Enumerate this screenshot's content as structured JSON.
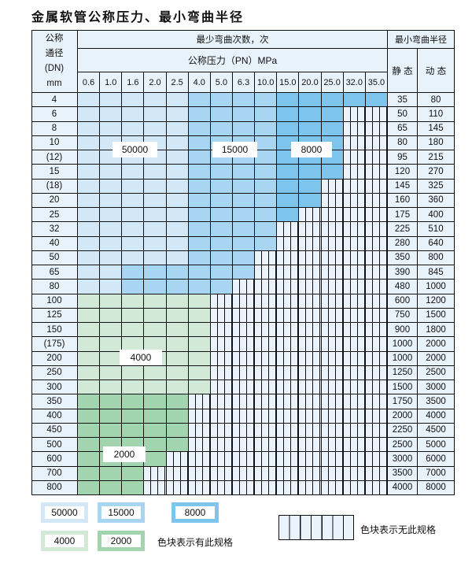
{
  "title": "金属软管公称压力、最小弯曲半径",
  "header": {
    "dn_label": [
      "公称",
      "通径",
      "(DN)",
      "mm"
    ],
    "cycles_label": "最少弯曲次数，次",
    "pressure_label": "公称压力（PN）MPa",
    "radius_label": "最小弯曲半径",
    "static_label": "静 态",
    "dynamic_label": "动 态",
    "pressures": [
      "0.6",
      "1.0",
      "1.6",
      "2.0",
      "2.5",
      "4.0",
      "5.0",
      "6.3",
      "10.0",
      "15.0",
      "20.0",
      "25.0",
      "32.0",
      "35.0"
    ]
  },
  "levels": {
    "A": {
      "cycles": "50000",
      "color": "#d3e8f7"
    },
    "B": {
      "cycles": "15000",
      "color": "#a8d5f2"
    },
    "C": {
      "cycles": "8000",
      "color": "#7ec5ee"
    },
    "G": {
      "cycles": "4000",
      "color": "#d2e9d7"
    },
    "H": {
      "cycles": "2000",
      "color": "#a2d4b0"
    }
  },
  "rows": [
    {
      "dn": "4",
      "static": "35",
      "dynamic": "80",
      "cells": "AAAAABBBBCCCCC"
    },
    {
      "dn": "6",
      "static": "50",
      "dynamic": "110",
      "cells": "AAAAABBBBCCC--"
    },
    {
      "dn": "8",
      "static": "65",
      "dynamic": "145",
      "cells": "AAAAABBBBCCC--"
    },
    {
      "dn": "10",
      "static": "80",
      "dynamic": "180",
      "cells": "AAAAABBBBCCC--"
    },
    {
      "dn": "(12)",
      "static": "95",
      "dynamic": "215",
      "cells": "AAAAABBBBCCC--"
    },
    {
      "dn": "15",
      "static": "120",
      "dynamic": "270",
      "cells": "AAAAABBBBCCC--"
    },
    {
      "dn": "(18)",
      "static": "145",
      "dynamic": "325",
      "cells": "AAAAABBBBCC---"
    },
    {
      "dn": "20",
      "static": "160",
      "dynamic": "360",
      "cells": "AAAAABBBBCC---"
    },
    {
      "dn": "25",
      "static": "175",
      "dynamic": "400",
      "cells": "AAAAABBBBC----"
    },
    {
      "dn": "32",
      "static": "225",
      "dynamic": "510",
      "cells": "AAAAABBBB-----"
    },
    {
      "dn": "40",
      "static": "280",
      "dynamic": "640",
      "cells": "AAAAABBBB-----"
    },
    {
      "dn": "50",
      "static": "350",
      "dynamic": "800",
      "cells": "AAAAABBB------"
    },
    {
      "dn": "65",
      "static": "390",
      "dynamic": "845",
      "cells": "AABBBBBB------"
    },
    {
      "dn": "80",
      "static": "480",
      "dynamic": "1000",
      "cells": "AABBBBB-------"
    },
    {
      "dn": "100",
      "static": "600",
      "dynamic": "1200",
      "cells": "GGGGGG--------"
    },
    {
      "dn": "125",
      "static": "750",
      "dynamic": "1500",
      "cells": "GGGGGG--------"
    },
    {
      "dn": "150",
      "static": "900",
      "dynamic": "1800",
      "cells": "GGGGGG--------"
    },
    {
      "dn": "(175)",
      "static": "1000",
      "dynamic": "2000",
      "cells": "GGGGGG--------"
    },
    {
      "dn": "200",
      "static": "1000",
      "dynamic": "2000",
      "cells": "GGGGGG--------"
    },
    {
      "dn": "250",
      "static": "1250",
      "dynamic": "2500",
      "cells": "GGGGGG--------"
    },
    {
      "dn": "300",
      "static": "1500",
      "dynamic": "3000",
      "cells": "GGGGGG--------"
    },
    {
      "dn": "350",
      "static": "1750",
      "dynamic": "3500",
      "cells": "HHHHH---------"
    },
    {
      "dn": "400",
      "static": "2000",
      "dynamic": "4000",
      "cells": "HHHHH---------"
    },
    {
      "dn": "450",
      "static": "2250",
      "dynamic": "4500",
      "cells": "HHHHH---------"
    },
    {
      "dn": "500",
      "static": "2500",
      "dynamic": "5000",
      "cells": "HHHHH---------"
    },
    {
      "dn": "600",
      "static": "3000",
      "dynamic": "6000",
      "cells": "HHHH----------"
    },
    {
      "dn": "700",
      "static": "3500",
      "dynamic": "7000",
      "cells": "HHH-----------"
    },
    {
      "dn": "800",
      "static": "4000",
      "dynamic": "8000",
      "cells": "HHH-----------"
    }
  ],
  "legend": {
    "has_spec_text": "色块表示有此规格",
    "no_spec_text": "色块表示无此规格"
  }
}
